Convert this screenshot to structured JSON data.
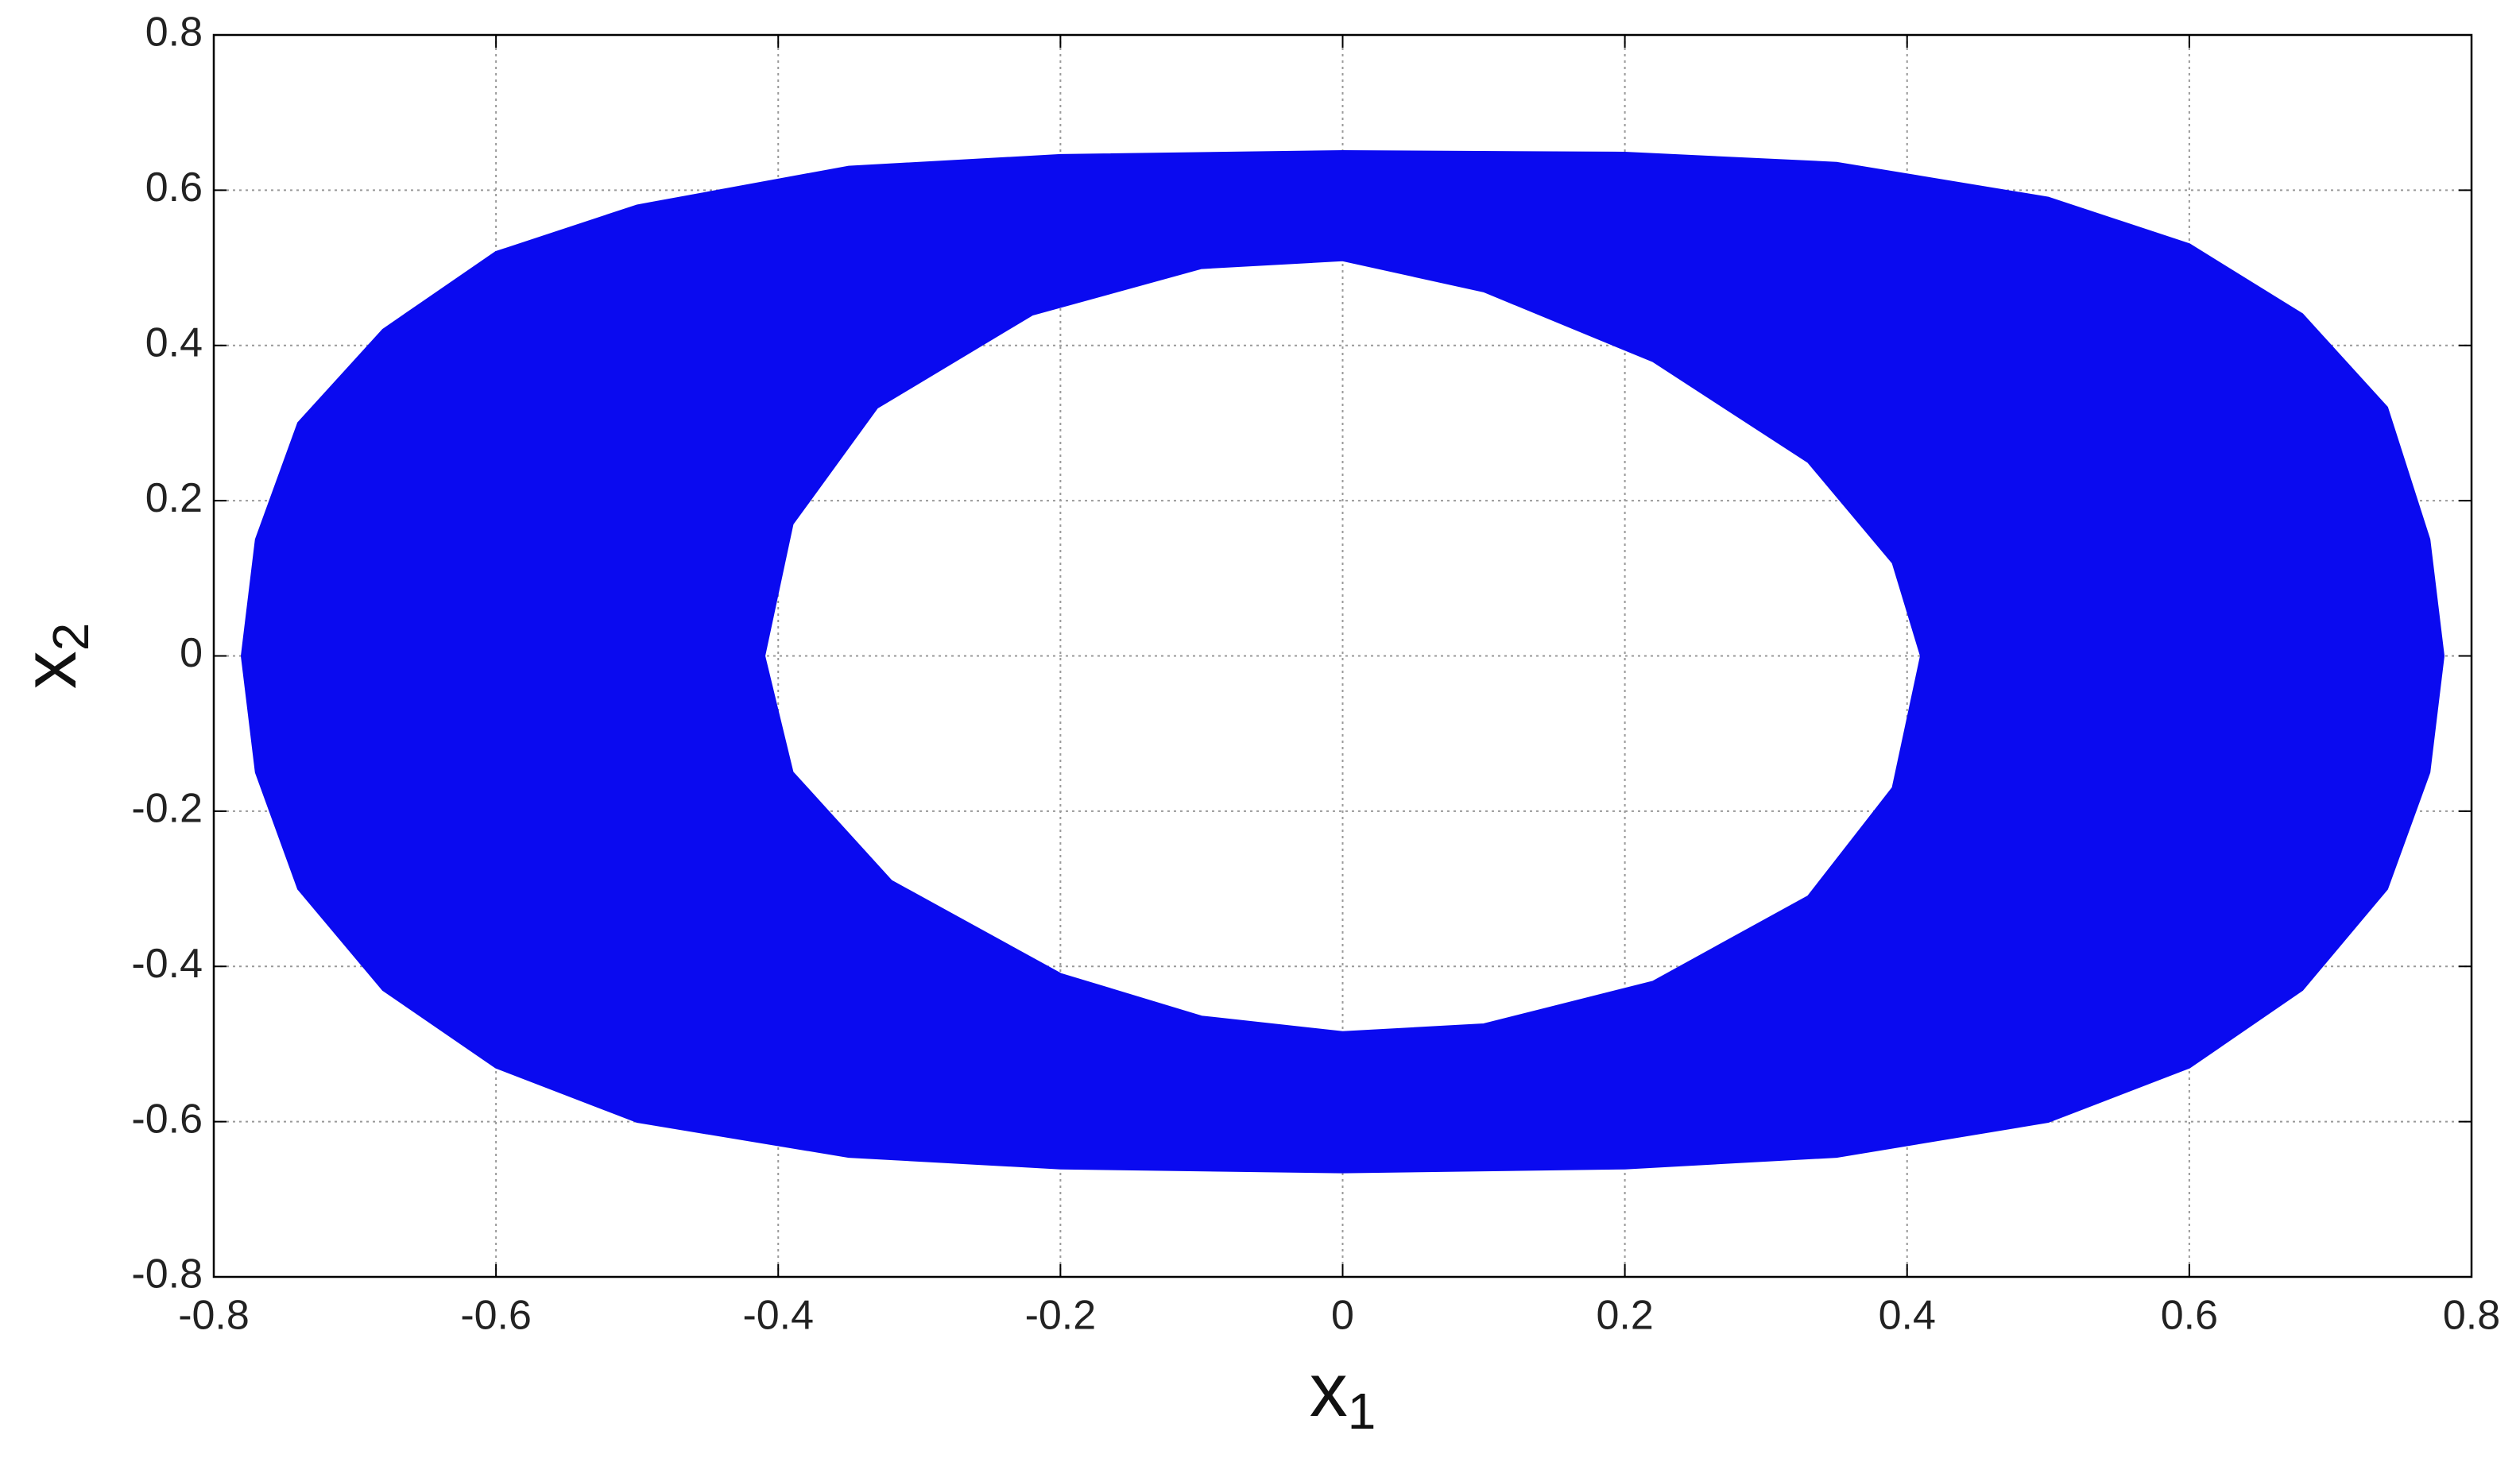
{
  "chart_data": {
    "type": "area",
    "xlabel": {
      "text": "x",
      "subscript": "1"
    },
    "ylabel": {
      "text": "x",
      "subscript": "2"
    },
    "xlim": [
      -0.8,
      0.8
    ],
    "ylim": [
      -0.8,
      0.8
    ],
    "xticks": [
      -0.8,
      -0.6,
      -0.4,
      -0.2,
      0,
      0.2,
      0.4,
      0.6,
      0.8
    ],
    "yticks": [
      -0.8,
      -0.6,
      -0.4,
      -0.2,
      0,
      0.2,
      0.4,
      0.6,
      0.8
    ],
    "grid": true,
    "series": [
      {
        "color": "#0a0af0",
        "x": [
          -0.78,
          -0.77,
          -0.74,
          -0.68,
          -0.6,
          -0.5,
          -0.35,
          -0.2,
          0,
          0.2,
          0.35,
          0.5,
          0.6,
          0.68,
          0.74,
          0.77,
          0.78,
          0.77,
          0.74,
          0.68,
          0.6,
          0.5,
          0.35,
          0.2,
          0,
          -0.2,
          -0.35,
          -0.5,
          -0.6,
          -0.68,
          -0.74,
          -0.77
        ],
        "values": [
          0,
          0.15,
          0.3,
          0.42,
          0.52,
          0.58,
          0.63,
          0.645,
          0.65,
          0.648,
          0.635,
          0.59,
          0.53,
          0.44,
          0.32,
          0.15,
          0,
          -0.15,
          -0.3,
          -0.43,
          -0.53,
          -0.6,
          -0.645,
          -0.66,
          -0.665,
          -0.66,
          -0.645,
          -0.6,
          -0.53,
          -0.43,
          -0.3,
          -0.15
        ]
      },
      {
        "color": "#ffffff",
        "x": [
          0.41,
          0.39,
          0.33,
          0.22,
          0.1,
          0,
          -0.1,
          -0.22,
          -0.33,
          -0.39,
          -0.41,
          -0.39,
          -0.32,
          -0.2,
          -0.1,
          0,
          0.1,
          0.22,
          0.33,
          0.39
        ],
        "values": [
          0,
          0.12,
          0.25,
          0.38,
          0.47,
          0.51,
          0.5,
          0.44,
          0.32,
          0.17,
          0,
          -0.15,
          -0.29,
          -0.41,
          -0.465,
          -0.485,
          -0.475,
          -0.42,
          -0.31,
          -0.17
        ]
      }
    ]
  }
}
